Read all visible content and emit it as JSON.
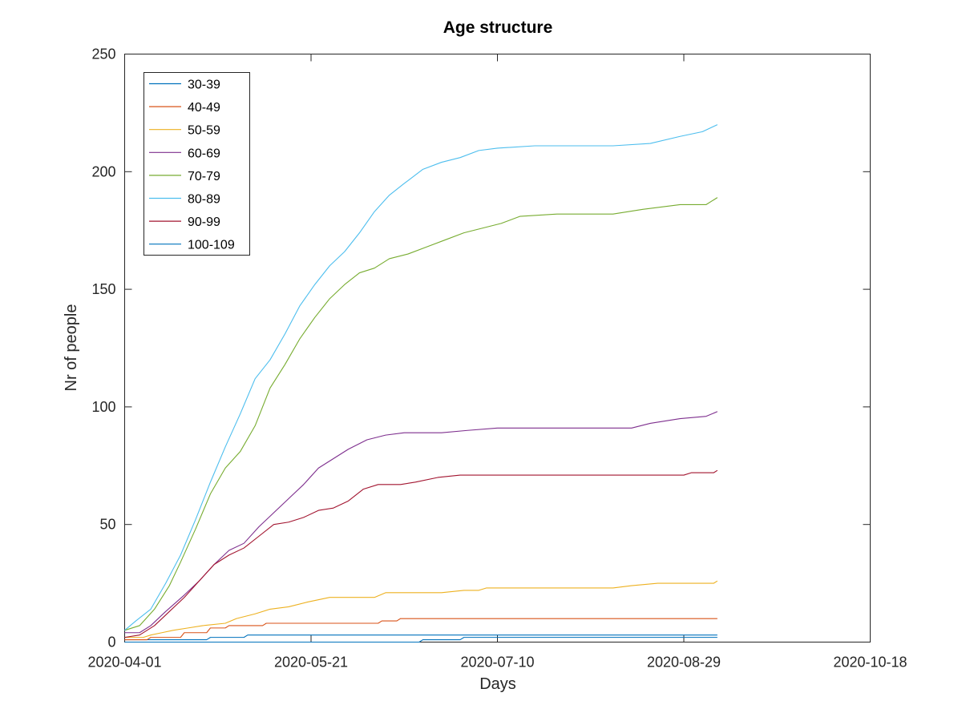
{
  "chart_data": {
    "type": "line",
    "title": "Age structure",
    "xlabel": "Days",
    "ylabel": "Nr of people",
    "x_axis_type": "date",
    "xlim": [
      "2020-04-01",
      "2020-10-18"
    ],
    "ylim": [
      0,
      250
    ],
    "x_ticks": [
      "2020-04-01",
      "2020-05-21",
      "2020-07-10",
      "2020-08-29",
      "2020-10-18"
    ],
    "y_ticks": [
      0,
      50,
      100,
      150,
      200,
      250
    ],
    "grid": false,
    "legend_position": "top-left",
    "series": [
      {
        "name": "30-39",
        "color": "#0072bd",
        "points": [
          [
            "2020-04-01",
            1
          ],
          [
            "2020-04-23",
            1
          ],
          [
            "2020-04-24",
            2
          ],
          [
            "2020-05-03",
            2
          ],
          [
            "2020-05-04",
            3
          ],
          [
            "2020-09-07",
            3
          ]
        ]
      },
      {
        "name": "40-49",
        "color": "#d95319",
        "points": [
          [
            "2020-04-01",
            1
          ],
          [
            "2020-04-07",
            1
          ],
          [
            "2020-04-08",
            2
          ],
          [
            "2020-04-16",
            2
          ],
          [
            "2020-04-17",
            4
          ],
          [
            "2020-04-23",
            4
          ],
          [
            "2020-04-24",
            6
          ],
          [
            "2020-04-28",
            6
          ],
          [
            "2020-04-29",
            7
          ],
          [
            "2020-05-08",
            7
          ],
          [
            "2020-05-09",
            8
          ],
          [
            "2020-06-08",
            8
          ],
          [
            "2020-06-09",
            9
          ],
          [
            "2020-06-13",
            9
          ],
          [
            "2020-06-14",
            10
          ],
          [
            "2020-09-07",
            10
          ]
        ]
      },
      {
        "name": "50-59",
        "color": "#edb120",
        "points": [
          [
            "2020-04-01",
            2
          ],
          [
            "2020-04-06",
            2
          ],
          [
            "2020-04-08",
            3
          ],
          [
            "2020-04-11",
            4
          ],
          [
            "2020-04-14",
            5
          ],
          [
            "2020-04-18",
            6
          ],
          [
            "2020-04-22",
            7
          ],
          [
            "2020-04-28",
            8
          ],
          [
            "2020-05-01",
            10
          ],
          [
            "2020-05-06",
            12
          ],
          [
            "2020-05-10",
            14
          ],
          [
            "2020-05-15",
            15
          ],
          [
            "2020-05-20",
            17
          ],
          [
            "2020-05-26",
            19
          ],
          [
            "2020-06-07",
            19
          ],
          [
            "2020-06-10",
            21
          ],
          [
            "2020-06-25",
            21
          ],
          [
            "2020-07-01",
            22
          ],
          [
            "2020-07-05",
            22
          ],
          [
            "2020-07-07",
            23
          ],
          [
            "2020-08-10",
            23
          ],
          [
            "2020-08-15",
            24
          ],
          [
            "2020-08-22",
            25
          ],
          [
            "2020-09-06",
            25
          ],
          [
            "2020-09-07",
            26
          ]
        ]
      },
      {
        "name": "60-69",
        "color": "#7e2f8e",
        "points": [
          [
            "2020-04-01",
            4
          ],
          [
            "2020-04-05",
            4
          ],
          [
            "2020-04-08",
            7
          ],
          [
            "2020-04-12",
            13
          ],
          [
            "2020-04-17",
            20
          ],
          [
            "2020-04-21",
            26
          ],
          [
            "2020-04-25",
            33
          ],
          [
            "2020-04-29",
            39
          ],
          [
            "2020-05-03",
            42
          ],
          [
            "2020-05-07",
            49
          ],
          [
            "2020-05-11",
            55
          ],
          [
            "2020-05-15",
            61
          ],
          [
            "2020-05-19",
            67
          ],
          [
            "2020-05-23",
            74
          ],
          [
            "2020-05-27",
            78
          ],
          [
            "2020-05-31",
            82
          ],
          [
            "2020-06-05",
            86
          ],
          [
            "2020-06-10",
            88
          ],
          [
            "2020-06-15",
            89
          ],
          [
            "2020-06-25",
            89
          ],
          [
            "2020-07-02",
            90
          ],
          [
            "2020-07-10",
            91
          ],
          [
            "2020-08-15",
            91
          ],
          [
            "2020-08-20",
            93
          ],
          [
            "2020-08-28",
            95
          ],
          [
            "2020-09-04",
            96
          ],
          [
            "2020-09-07",
            98
          ]
        ]
      },
      {
        "name": "70-79",
        "color": "#77ac30",
        "points": [
          [
            "2020-04-01",
            5
          ],
          [
            "2020-04-05",
            7
          ],
          [
            "2020-04-09",
            14
          ],
          [
            "2020-04-13",
            24
          ],
          [
            "2020-04-16",
            34
          ],
          [
            "2020-04-20",
            48
          ],
          [
            "2020-04-24",
            63
          ],
          [
            "2020-04-28",
            74
          ],
          [
            "2020-05-02",
            81
          ],
          [
            "2020-05-06",
            92
          ],
          [
            "2020-05-10",
            108
          ],
          [
            "2020-05-14",
            118
          ],
          [
            "2020-05-18",
            129
          ],
          [
            "2020-05-22",
            138
          ],
          [
            "2020-05-26",
            146
          ],
          [
            "2020-05-30",
            152
          ],
          [
            "2020-06-03",
            157
          ],
          [
            "2020-06-07",
            159
          ],
          [
            "2020-06-11",
            163
          ],
          [
            "2020-06-16",
            165
          ],
          [
            "2020-06-21",
            168
          ],
          [
            "2020-06-26",
            171
          ],
          [
            "2020-07-01",
            174
          ],
          [
            "2020-07-06",
            176
          ],
          [
            "2020-07-11",
            178
          ],
          [
            "2020-07-16",
            181
          ],
          [
            "2020-07-26",
            182
          ],
          [
            "2020-08-10",
            182
          ],
          [
            "2020-08-18",
            184
          ],
          [
            "2020-08-28",
            186
          ],
          [
            "2020-09-04",
            186
          ],
          [
            "2020-09-07",
            189
          ]
        ]
      },
      {
        "name": "80-89",
        "color": "#4dbeee",
        "points": [
          [
            "2020-04-01",
            5
          ],
          [
            "2020-04-04",
            9
          ],
          [
            "2020-04-08",
            14
          ],
          [
            "2020-04-12",
            25
          ],
          [
            "2020-04-16",
            37
          ],
          [
            "2020-04-20",
            52
          ],
          [
            "2020-04-24",
            68
          ],
          [
            "2020-04-28",
            83
          ],
          [
            "2020-05-02",
            97
          ],
          [
            "2020-05-06",
            112
          ],
          [
            "2020-05-10",
            120
          ],
          [
            "2020-05-14",
            131
          ],
          [
            "2020-05-18",
            143
          ],
          [
            "2020-05-22",
            152
          ],
          [
            "2020-05-26",
            160
          ],
          [
            "2020-05-30",
            166
          ],
          [
            "2020-06-03",
            174
          ],
          [
            "2020-06-07",
            183
          ],
          [
            "2020-06-11",
            190
          ],
          [
            "2020-06-15",
            195
          ],
          [
            "2020-06-20",
            201
          ],
          [
            "2020-06-25",
            204
          ],
          [
            "2020-06-30",
            206
          ],
          [
            "2020-07-05",
            209
          ],
          [
            "2020-07-10",
            210
          ],
          [
            "2020-07-20",
            211
          ],
          [
            "2020-08-10",
            211
          ],
          [
            "2020-08-20",
            212
          ],
          [
            "2020-08-28",
            215
          ],
          [
            "2020-09-03",
            217
          ],
          [
            "2020-09-07",
            220
          ]
        ]
      },
      {
        "name": "90-99",
        "color": "#a2142f",
        "points": [
          [
            "2020-04-01",
            2
          ],
          [
            "2020-04-05",
            3
          ],
          [
            "2020-04-09",
            7
          ],
          [
            "2020-04-13",
            13
          ],
          [
            "2020-04-17",
            19
          ],
          [
            "2020-04-21",
            26
          ],
          [
            "2020-04-25",
            33
          ],
          [
            "2020-04-29",
            37
          ],
          [
            "2020-05-03",
            40
          ],
          [
            "2020-05-07",
            45
          ],
          [
            "2020-05-11",
            50
          ],
          [
            "2020-05-15",
            51
          ],
          [
            "2020-05-19",
            53
          ],
          [
            "2020-05-23",
            56
          ],
          [
            "2020-05-27",
            57
          ],
          [
            "2020-05-31",
            60
          ],
          [
            "2020-06-04",
            65
          ],
          [
            "2020-06-08",
            67
          ],
          [
            "2020-06-14",
            67
          ],
          [
            "2020-06-18",
            68
          ],
          [
            "2020-06-24",
            70
          ],
          [
            "2020-06-30",
            71
          ],
          [
            "2020-08-29",
            71
          ],
          [
            "2020-08-31",
            72
          ],
          [
            "2020-09-06",
            72
          ],
          [
            "2020-09-07",
            73
          ]
        ]
      },
      {
        "name": "100-109",
        "color": "#0072bd",
        "points": [
          [
            "2020-04-01",
            0
          ],
          [
            "2020-06-19",
            0
          ],
          [
            "2020-06-20",
            1
          ],
          [
            "2020-06-30",
            1
          ],
          [
            "2020-07-01",
            2
          ],
          [
            "2020-09-07",
            2
          ]
        ]
      }
    ]
  }
}
